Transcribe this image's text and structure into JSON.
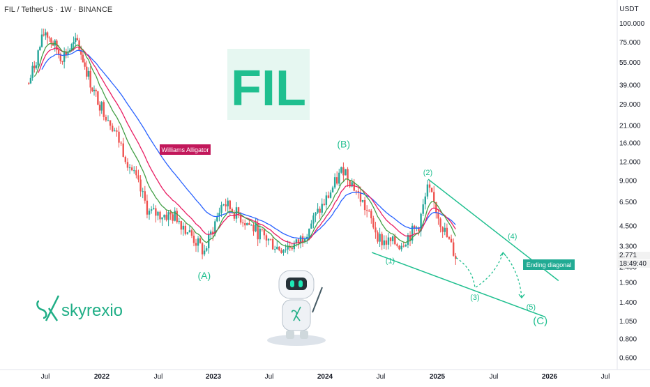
{
  "header": {
    "symbol_line": "FIL / TetherUS · 1W · BINANCE"
  },
  "logo": {
    "text": "FIL"
  },
  "brand": {
    "name": "skyrexio"
  },
  "labels": {
    "alligator": "Williams Alligator",
    "A": "(A)",
    "B": "(B)",
    "C": "(C)",
    "w1": "(1)",
    "w2": "(2)",
    "w3": "(3)",
    "w4": "(4)",
    "w5": "(5)",
    "ending": "Ending diagonal"
  },
  "price_axis": {
    "unit": "USDT",
    "current_price": "2.771",
    "countdown": "18:49:40"
  },
  "colors": {
    "up": "#26a69a",
    "down": "#ef5350",
    "jaw": "#2962ff",
    "teeth": "#e91e63",
    "lips": "#43a047",
    "accent": "#1fbf8f",
    "alligator_tag": "#c2185b",
    "ending_tag": "#22ab94"
  },
  "chart_data": {
    "type": "candlestick",
    "title": "FIL / TetherUS · 1W · BINANCE",
    "yscale": "log",
    "ylim": [
      0.5,
      140
    ],
    "y_ticks": [
      "100.000",
      "75.000",
      "55.000",
      "39.000",
      "29.000",
      "21.000",
      "16.000",
      "12.000",
      "9.000",
      "6.500",
      "4.500",
      "3.300",
      "2.400",
      "1.900",
      "1.400",
      "1.050",
      "0.800",
      "0.600"
    ],
    "x_ticks": [
      "Jul",
      "2022",
      "Jul",
      "2023",
      "Jul",
      "2024",
      "Jul",
      "2025",
      "Jul",
      "2026",
      "Jul"
    ],
    "approx_close_path": [
      [
        "2021-04",
        40
      ],
      [
        "2021-06",
        90
      ],
      [
        "2021-08",
        60
      ],
      [
        "2021-10",
        75
      ],
      [
        "2021-12",
        35
      ],
      [
        "2022-02",
        22
      ],
      [
        "2022-05",
        8
      ],
      [
        "2022-06",
        5.5
      ],
      [
        "2022-09",
        5.2
      ],
      [
        "2022-12",
        3.0
      ],
      [
        "2023-02",
        6.5
      ],
      [
        "2023-05",
        4.5
      ],
      [
        "2023-08",
        3.2
      ],
      [
        "2023-10",
        3.4
      ],
      [
        "2024-01",
        6.5
      ],
      [
        "2024-03",
        11
      ],
      [
        "2024-05",
        6.5
      ],
      [
        "2024-07",
        3.6
      ],
      [
        "2024-09",
        3.4
      ],
      [
        "2024-11",
        4.5
      ],
      [
        "2024-12",
        8
      ],
      [
        "2025-02",
        3.8
      ],
      [
        "2025-03",
        2.8
      ]
    ],
    "projection_path": [
      [
        "2025-03",
        2.77
      ],
      [
        "2025-05",
        1.75
      ],
      [
        "2025-08",
        3.0
      ],
      [
        "2025-10",
        1.5
      ]
    ],
    "wave_labels": {
      "A": [
        "2022-12",
        2.0
      ],
      "B": [
        "2024-03",
        15
      ],
      "C": [
        "2025-12",
        1.0
      ],
      "1": [
        "2024-08",
        2.55
      ],
      "2": [
        "2024-12",
        9.8
      ],
      "3": [
        "2025-05",
        1.45
      ],
      "4": [
        "2025-09",
        3.7
      ],
      "5": [
        "2025-11",
        1.25
      ]
    },
    "indicator": "Williams Alligator",
    "pattern": "Ending diagonal"
  }
}
